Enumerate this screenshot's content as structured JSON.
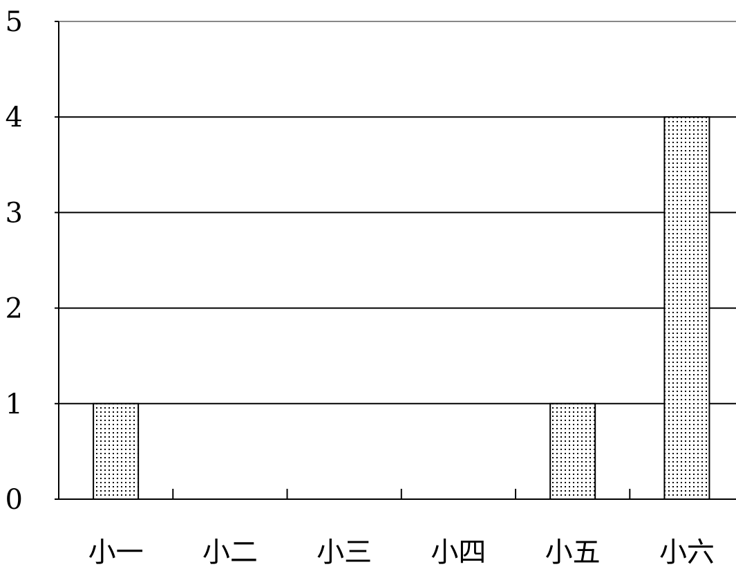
{
  "chart_data": {
    "type": "bar",
    "categories": [
      "小一",
      "小二",
      "小三",
      "小四",
      "小五",
      "小六"
    ],
    "values": [
      1,
      0,
      0,
      0,
      1,
      4
    ],
    "title": "",
    "xlabel": "",
    "ylabel": "",
    "ylim": [
      0,
      5
    ],
    "yticks": [
      0,
      1,
      2,
      3,
      4,
      5
    ],
    "grid": true,
    "legend": "none",
    "bar_fill": "dotted",
    "colors": {
      "bar_dots": "#000000",
      "bar_bg": "#ffffff",
      "gridline": "#000000"
    }
  }
}
